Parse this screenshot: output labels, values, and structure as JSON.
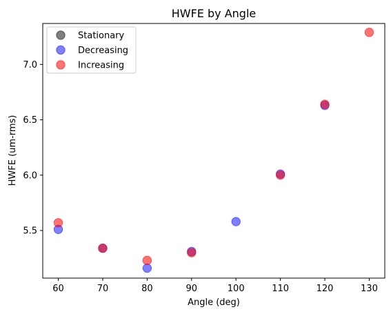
{
  "chart_data": {
    "type": "scatter",
    "title": "HWFE by Angle",
    "xlabel": "Angle (deg)",
    "ylabel": "HWFE (um-rms)",
    "xlim": [
      56.5,
      133.5
    ],
    "ylim": [
      5.07,
      7.37
    ],
    "xticks": [
      60,
      70,
      80,
      90,
      100,
      110,
      120,
      130
    ],
    "yticks": [
      5.5,
      6.0,
      6.5,
      7.0
    ],
    "ytick_labels": [
      "5.5",
      "6.0",
      "6.5",
      "7.0"
    ],
    "grid": false,
    "legend_position": "top-left",
    "series": [
      {
        "name": "Stationary",
        "color": "#000000",
        "alpha": 0.5,
        "x": [],
        "y": []
      },
      {
        "name": "Decreasing",
        "color": "#0000ff",
        "alpha": 0.5,
        "x": [
          60,
          70,
          80,
          90,
          100,
          110,
          120
        ],
        "y": [
          5.51,
          5.34,
          5.16,
          5.31,
          5.58,
          6.01,
          6.63
        ]
      },
      {
        "name": "Increasing",
        "color": "#ff0000",
        "alpha": 0.55,
        "x": [
          60,
          70,
          80,
          90,
          110,
          120,
          130
        ],
        "y": [
          5.57,
          5.34,
          5.23,
          5.3,
          6.0,
          6.64,
          7.29
        ]
      }
    ]
  }
}
